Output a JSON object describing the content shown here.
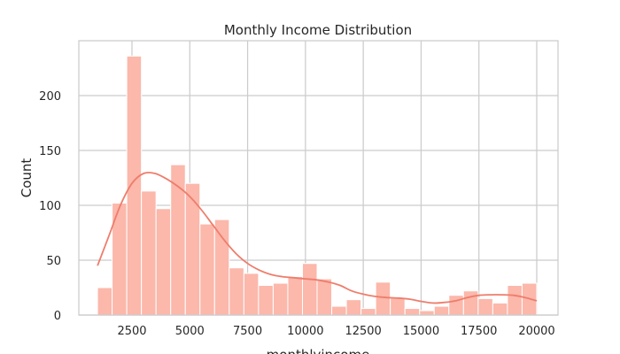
{
  "colors": {
    "bar_fill": "#fbb8ab",
    "kde_line": "#ee7d6c",
    "grid": "#cccccc"
  },
  "chart_data": {
    "type": "bar",
    "title": "Monthly Income Distribution",
    "xlabel": "monthlyincome",
    "ylabel": "Count",
    "xlim": [
      0,
      21000
    ],
    "ylim": [
      0,
      250
    ],
    "grid": true,
    "xticks": [
      2500,
      5000,
      7500,
      10000,
      12500,
      15000,
      17500,
      20000
    ],
    "xtick_labels": [
      "2500",
      "5000",
      "7500",
      "10000",
      "12500",
      "15000",
      "17500",
      "20000"
    ],
    "yticks": [
      0,
      50,
      100,
      150,
      200
    ],
    "ytick_labels": [
      "0",
      "50",
      "100",
      "150",
      "200"
    ],
    "bin_start": 1009,
    "bin_width": 633,
    "values": [
      25,
      102,
      236,
      113,
      97,
      137,
      120,
      83,
      87,
      43,
      38,
      27,
      29,
      35,
      47,
      33,
      8,
      14,
      6,
      30,
      16,
      6,
      4,
      8,
      18,
      22,
      15,
      11,
      27,
      29
    ],
    "kde": {
      "x": [
        1009,
        1500,
        2000,
        2500,
        3000,
        3500,
        4000,
        4500,
        5000,
        5500,
        6000,
        6500,
        7000,
        7500,
        8000,
        8500,
        9000,
        9500,
        10000,
        10500,
        11000,
        11500,
        12000,
        12500,
        13000,
        13500,
        14000,
        14500,
        15000,
        15500,
        16000,
        16500,
        17000,
        17500,
        18000,
        18500,
        19000,
        19500,
        19999
      ],
      "y": [
        45,
        72,
        100,
        120,
        129,
        129,
        124,
        117,
        108,
        96,
        82,
        68,
        56,
        47,
        41,
        37,
        35,
        34,
        33,
        32,
        30,
        27,
        22,
        19,
        17,
        16,
        15.5,
        14.5,
        12.5,
        11,
        11.5,
        13,
        16,
        18,
        18.5,
        18.5,
        18,
        16,
        13
      ]
    }
  }
}
